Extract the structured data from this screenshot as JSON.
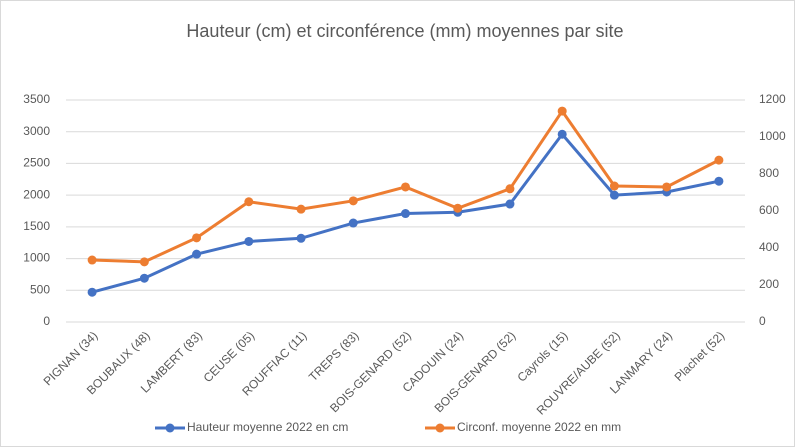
{
  "chart_data": {
    "type": "line",
    "title": "Hauteur (cm) et circonférence (mm) moyennes par site",
    "categories": [
      "PIGNAN (34)",
      "BOUBAUX (48)",
      "LAMBERT (83)",
      "CEUSE (05)",
      "ROUFFIAC (11)",
      "TREPS (83)",
      "BOIS-GENARD (52)",
      "CADOUIN (24)",
      "BOIS-GENARD (52)",
      "Cayrols (15)",
      "ROUVRE/AUBE (52)",
      "LANMARY (24)",
      "Plachet (52)"
    ],
    "series": [
      {
        "name": "Hauteur moyenne 2022 en cm",
        "color": "#4472c4",
        "values": [
          470,
          690,
          1070,
          1270,
          1320,
          1560,
          1710,
          1730,
          1860,
          2960,
          2000,
          2050,
          2220
        ]
      },
      {
        "name": "Circonf. moyenne 2022 en mm",
        "color": "#ed7d31",
        "axis": "y2",
        "values": [
          335,
          325,
          455,
          650,
          610,
          655,
          730,
          615,
          720,
          1140,
          735,
          730,
          875
        ]
      }
    ],
    "ylim": [
      0,
      3500
    ],
    "yticks": [
      0,
      500,
      1000,
      1500,
      2000,
      2500,
      3000,
      3500
    ],
    "y2lim": [
      0,
      1200
    ],
    "y2ticks": [
      0,
      200,
      400,
      600,
      800,
      1000,
      1200
    ],
    "grid": true,
    "legend": "bottom"
  }
}
